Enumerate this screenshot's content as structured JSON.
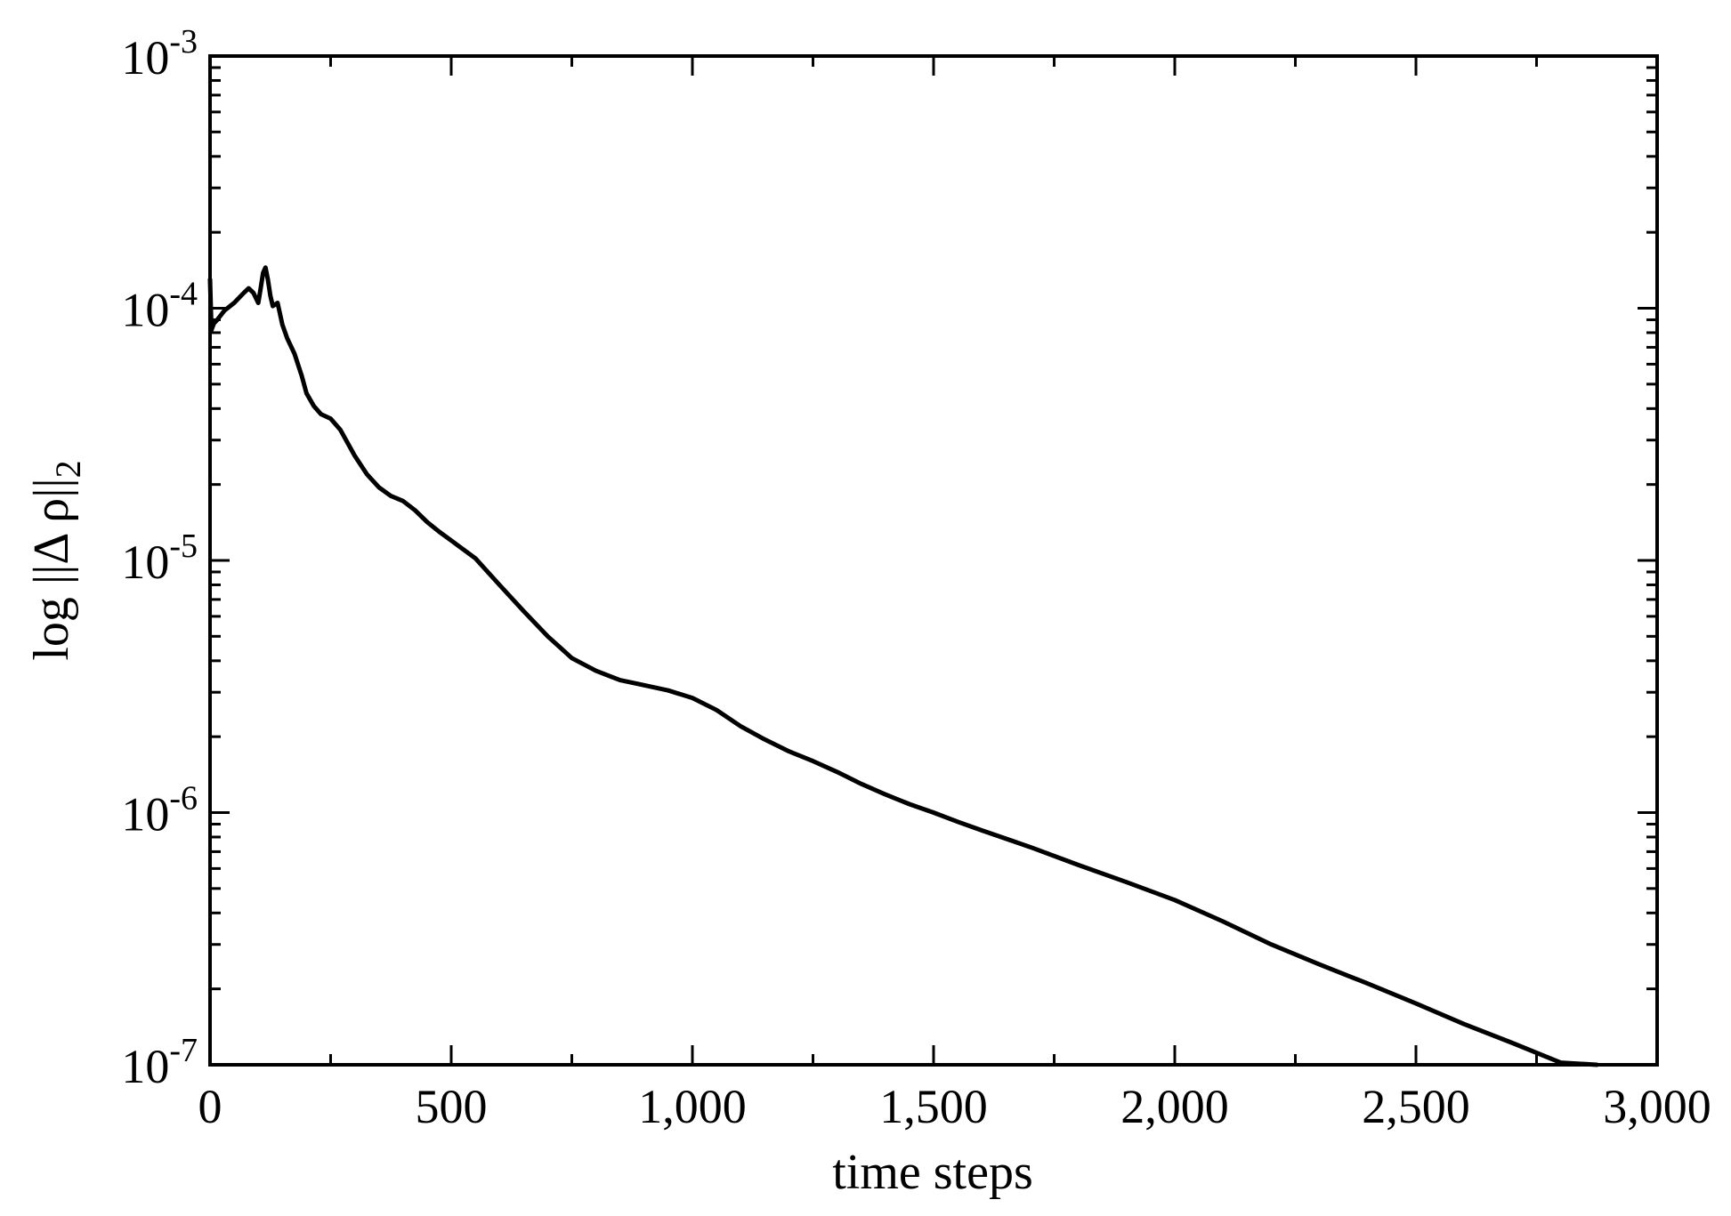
{
  "chart_data": {
    "type": "line",
    "xlabel": "time steps",
    "ylabel": "log ||Δ ρ||",
    "ylabel_subscript": "2",
    "xlim": [
      0,
      3000
    ],
    "ylim": [
      1e-07,
      0.001
    ],
    "yscale": "log",
    "grid": false,
    "x_ticks": [
      {
        "value": 0,
        "label": "0"
      },
      {
        "value": 500,
        "label": "500"
      },
      {
        "value": 1000,
        "label": "1,000"
      },
      {
        "value": 1500,
        "label": "1,500"
      },
      {
        "value": 2000,
        "label": "2,000"
      },
      {
        "value": 2500,
        "label": "2,500"
      },
      {
        "value": 3000,
        "label": "3,000"
      }
    ],
    "y_ticks": [
      {
        "value": 1e-07,
        "base": "10",
        "exp": "-7"
      },
      {
        "value": 1e-06,
        "base": "10",
        "exp": "-6"
      },
      {
        "value": 1e-05,
        "base": "10",
        "exp": "-5"
      },
      {
        "value": 0.0001,
        "base": "10",
        "exp": "-4"
      },
      {
        "value": 0.001,
        "base": "10",
        "exp": "-3"
      }
    ],
    "series": [
      {
        "color": "#000000",
        "x": [
          0,
          3,
          8,
          15,
          30,
          50,
          70,
          80,
          90,
          100,
          105,
          110,
          115,
          120,
          125,
          130,
          140,
          150,
          160,
          175,
          190,
          200,
          215,
          230,
          250,
          270,
          300,
          325,
          350,
          375,
          400,
          425,
          450,
          475,
          500,
          550,
          600,
          650,
          700,
          750,
          800,
          850,
          900,
          950,
          1000,
          1050,
          1100,
          1150,
          1200,
          1250,
          1300,
          1350,
          1400,
          1450,
          1500,
          1550,
          1600,
          1700,
          1800,
          1900,
          2000,
          2100,
          2200,
          2300,
          2400,
          2500,
          2600,
          2700,
          2800,
          2875
        ],
        "y": [
          0.00013,
          8.2e-05,
          8.7e-05,
          9e-05,
          9.8e-05,
          0.000105,
          0.000115,
          0.00012,
          0.000115,
          0.000105,
          0.00012,
          0.000138,
          0.000145,
          0.00013,
          0.000112,
          0.000102,
          0.000105,
          8.6e-05,
          7.6e-05,
          6.6e-05,
          5.4e-05,
          4.6e-05,
          4.1e-05,
          3.8e-05,
          3.65e-05,
          3.3e-05,
          2.6e-05,
          2.2e-05,
          1.95e-05,
          1.8e-05,
          1.72e-05,
          1.58e-05,
          1.42e-05,
          1.3e-05,
          1.2e-05,
          1.02e-05,
          8e-06,
          6.3e-06,
          5e-06,
          4.1e-06,
          3.65e-06,
          3.35e-06,
          3.2e-06,
          3.05e-06,
          2.85e-06,
          2.55e-06,
          2.2e-06,
          1.95e-06,
          1.75e-06,
          1.6e-06,
          1.45e-06,
          1.3e-06,
          1.18e-06,
          1.08e-06,
          1e-06,
          9.2e-07,
          8.5e-07,
          7.3e-07,
          6.2e-07,
          5.3e-07,
          4.5e-07,
          3.7e-07,
          3e-07,
          2.5e-07,
          2.1e-07,
          1.75e-07,
          1.45e-07,
          1.22e-07,
          1.02e-07,
          1e-07
        ]
      }
    ]
  }
}
